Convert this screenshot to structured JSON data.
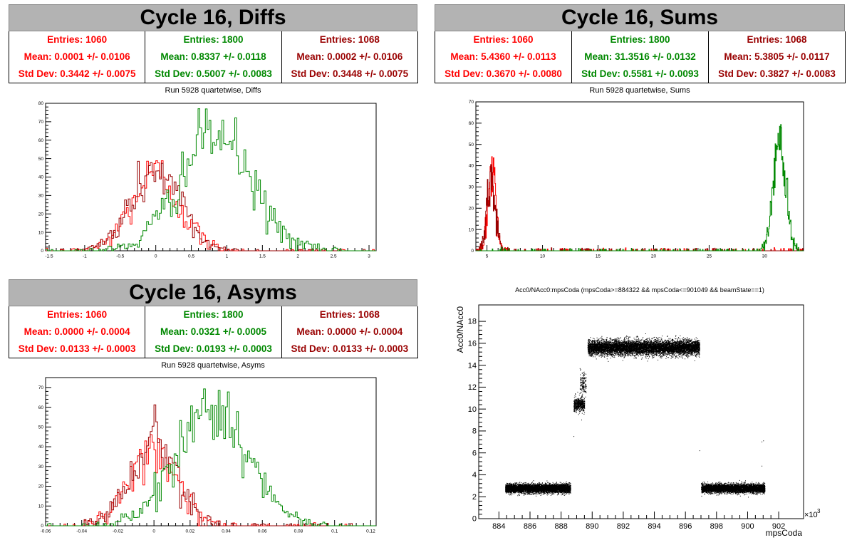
{
  "colors": {
    "red": "#ff0000",
    "green": "#008800",
    "dark_red": "#990000",
    "black": "#000000"
  },
  "panels": [
    {
      "title": "Cycle 16, Diffs",
      "subtitle": "Run 5928 quartetwise, Diffs",
      "stats": [
        {
          "entries": "Entries: 1060",
          "mean": "Mean: 0.0001 +/- 0.0106",
          "std": "Std Dev: 0.3442 +/- 0.0075",
          "color": "#ff0000"
        },
        {
          "entries": "Entries: 1800",
          "mean": "Mean: 0.8337 +/- 0.0118",
          "std": "Std Dev: 0.5007 +/- 0.0083",
          "color": "#008800"
        },
        {
          "entries": "Entries: 1068",
          "mean": "Mean: 0.0002 +/- 0.0106",
          "std": "Std Dev: 0.3448 +/- 0.0075",
          "color": "#990000"
        }
      ]
    },
    {
      "title": "Cycle 16, Sums",
      "subtitle": "Run 5928 quartetwise, Sums",
      "stats": [
        {
          "entries": "Entries: 1060",
          "mean": "Mean: 5.4360 +/- 0.0113",
          "std": "Std Dev: 0.3670 +/- 0.0080",
          "color": "#ff0000"
        },
        {
          "entries": "Entries: 1800",
          "mean": "Mean: 31.3516 +/- 0.0132",
          "std": "Std Dev: 0.5581 +/- 0.0093",
          "color": "#008800"
        },
        {
          "entries": "Entries: 1068",
          "mean": "Mean: 5.3805 +/- 0.0117",
          "std": "Std Dev: 0.3827 +/- 0.0083",
          "color": "#990000"
        }
      ]
    },
    {
      "title": "Cycle 16, Asyms",
      "subtitle": "Run 5928 quartetwise, Asyms",
      "stats": [
        {
          "entries": "Entries: 1060",
          "mean": "Mean: 0.0000 +/- 0.0004",
          "std": "Std Dev: 0.0133 +/- 0.0003",
          "color": "#ff0000"
        },
        {
          "entries": "Entries: 1800",
          "mean": "Mean: 0.0321 +/- 0.0005",
          "std": "Std Dev: 0.0193 +/- 0.0003",
          "color": "#008800"
        },
        {
          "entries": "Entries: 1068",
          "mean": "Mean: 0.0000 +/- 0.0004",
          "std": "Std Dev: 0.0133 +/- 0.0003",
          "color": "#990000"
        }
      ]
    },
    {
      "title": "",
      "subtitle": "Acc0/NAcc0:mpsCoda (mpsCoda>=884322 && mpsCoda<=901049 && beamState==1)",
      "stats": []
    }
  ],
  "chart_data": [
    {
      "type": "histogram",
      "xlim": [
        -1.55,
        3.1
      ],
      "ylim": [
        0,
        80
      ],
      "xticks": [
        -1.5,
        -1,
        -0.5,
        0,
        0.5,
        1,
        1.5,
        2,
        2.5,
        3
      ],
      "xtick_labels": [
        "-1.5",
        "-1",
        "-0.5",
        "0",
        "0.5",
        "1",
        "1.5",
        "2",
        "2.5",
        "3"
      ],
      "yticks": [
        0,
        10,
        20,
        30,
        40,
        50,
        60,
        70,
        80
      ],
      "ytick_labels": [
        "0",
        "10",
        "20",
        "30",
        "40",
        "50",
        "60",
        "70",
        "80"
      ],
      "series": [
        {
          "color": "#ff0000",
          "mean": 0.0001,
          "std": 0.3442,
          "peak": 50
        },
        {
          "color": "#990000",
          "mean": 0.0002,
          "std": 0.3448,
          "peak": 53
        },
        {
          "color": "#008800",
          "mean": 0.8337,
          "std": 0.5007,
          "peak": 77
        }
      ]
    },
    {
      "type": "histogram",
      "xlim": [
        4,
        33.5
      ],
      "ylim": [
        0,
        70
      ],
      "xticks": [
        5,
        10,
        15,
        20,
        25,
        30
      ],
      "xtick_labels": [
        "5",
        "10",
        "15",
        "20",
        "25",
        "30"
      ],
      "yticks": [
        0,
        10,
        20,
        30,
        40,
        50,
        60,
        70
      ],
      "ytick_labels": [
        "0",
        "10",
        "20",
        "30",
        "40",
        "50",
        "60",
        "70"
      ],
      "series": [
        {
          "color": "#ff0000",
          "mean": 5.436,
          "std": 0.367,
          "peak": 50
        },
        {
          "color": "#990000",
          "mean": 5.3805,
          "std": 0.3827,
          "peak": 40
        },
        {
          "color": "#008800",
          "mean": 31.3516,
          "std": 0.5581,
          "peak": 67
        }
      ]
    },
    {
      "type": "histogram",
      "xlim": [
        -0.06,
        0.123
      ],
      "ylim": [
        0,
        75
      ],
      "xticks": [
        -0.06,
        -0.04,
        -0.02,
        0,
        0.02,
        0.04,
        0.06,
        0.08,
        0.1,
        0.12
      ],
      "xtick_labels": [
        "-0.06",
        "-0.04",
        "-0.02",
        "0",
        "0.02",
        "0.04",
        "0.06",
        "0.08",
        "0.1",
        "0.12"
      ],
      "yticks": [
        0,
        10,
        20,
        30,
        40,
        50,
        60,
        70
      ],
      "ytick_labels": [
        "0",
        "10",
        "20",
        "30",
        "40",
        "50",
        "60",
        "70"
      ],
      "series": [
        {
          "color": "#ff0000",
          "mean": 0.0,
          "std": 0.0133,
          "peak": 48
        },
        {
          "color": "#990000",
          "mean": 0.0,
          "std": 0.0133,
          "peak": 52
        },
        {
          "color": "#008800",
          "mean": 0.0321,
          "std": 0.0193,
          "peak": 74
        }
      ]
    },
    {
      "type": "scatter",
      "xlabel": "mpsCoda",
      "ylabel": "Acc0/NAcc0",
      "x_multiplier": "×10",
      "x_multiplier_exp": "3",
      "xlim": [
        882.7,
        903.6
      ],
      "ylim": [
        0,
        19.5
      ],
      "xticks": [
        884,
        886,
        888,
        890,
        892,
        894,
        896,
        898,
        900,
        902
      ],
      "xtick_labels": [
        "884",
        "886",
        "888",
        "890",
        "892",
        "894",
        "896",
        "898",
        "900",
        "902"
      ],
      "yticks": [
        0,
        2,
        4,
        6,
        8,
        10,
        12,
        14,
        16,
        18
      ],
      "ytick_labels": [
        "0",
        "2",
        "4",
        "6",
        "8",
        "10",
        "12",
        "14",
        "16",
        "18"
      ],
      "clusters": [
        {
          "x": [
            884.4,
            888.6
          ],
          "y_center": 2.75,
          "y_spread": 0.35,
          "count": 6000
        },
        {
          "x": [
            888.8,
            889.5
          ],
          "y_center": 10.4,
          "y_spread": 0.55,
          "count": 600
        },
        {
          "x": [
            889.2,
            889.6
          ],
          "y_center": 12.3,
          "y_spread": 0.9,
          "count": 150
        },
        {
          "x": [
            889.7,
            896.9
          ],
          "y_center": 15.6,
          "y_spread": 0.6,
          "count": 9000
        },
        {
          "x": [
            897.0,
            901.1
          ],
          "y_center": 2.75,
          "y_spread": 0.35,
          "count": 5500
        }
      ],
      "outliers": [
        [
          896.9,
          6.2
        ],
        [
          900.9,
          7.0
        ],
        [
          901.0,
          7.1
        ],
        [
          900.9,
          4.8
        ],
        [
          888.8,
          7.5
        ],
        [
          889.3,
          9.0
        ]
      ]
    }
  ]
}
